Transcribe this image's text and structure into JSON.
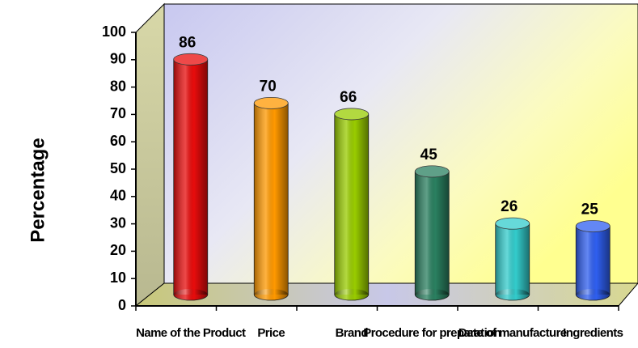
{
  "chart_data": {
    "type": "bar",
    "categories": [
      "Name of the Product",
      "Price",
      "Brand",
      "Procedure for preparation",
      "Date of manufacture",
      "Ingredients"
    ],
    "values": [
      86,
      70,
      66,
      45,
      26,
      25
    ],
    "colors": [
      "#e80c0c",
      "#ff9900",
      "#99cc00",
      "#2a8060",
      "#33cccc",
      "#2f5ff0"
    ],
    "y_label": "Percentage",
    "ylim": [
      0,
      100
    ],
    "yticks": [
      0,
      10,
      20,
      30,
      40,
      50,
      60,
      70,
      80,
      90,
      100
    ]
  }
}
